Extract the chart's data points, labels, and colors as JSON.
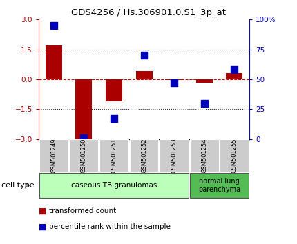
{
  "title": "GDS4256 / Hs.306901.0.S1_3p_at",
  "samples": [
    "GSM501249",
    "GSM501250",
    "GSM501251",
    "GSM501252",
    "GSM501253",
    "GSM501254",
    "GSM501255"
  ],
  "red_values": [
    1.7,
    -3.0,
    -1.1,
    0.4,
    -0.05,
    -0.18,
    0.32
  ],
  "blue_values": [
    95,
    1,
    17,
    70,
    47,
    30,
    58
  ],
  "ylim_left": [
    -3,
    3
  ],
  "ylim_right": [
    0,
    100
  ],
  "yticks_left": [
    -3,
    -1.5,
    0,
    1.5,
    3
  ],
  "yticks_right": [
    0,
    25,
    50,
    75,
    100
  ],
  "ytick_labels_right": [
    "0",
    "25",
    "50",
    "75",
    "100%"
  ],
  "red_color": "#aa0000",
  "blue_color": "#0000bb",
  "bar_width": 0.55,
  "blue_marker_size": 45,
  "hline_zero_color": "#cc0000",
  "hline_dotted_color": "#333333",
  "group1_label": "caseous TB granulomas",
  "group2_label": "normal lung\nparenchyma",
  "cell_type_label": "cell type",
  "legend_red_label": "transformed count",
  "legend_blue_label": "percentile rank within the sample",
  "xticklabel_bg": "#cccccc",
  "group1_bg": "#bbffbb",
  "group2_bg": "#55bb55",
  "n_group1": 5,
  "n_group2": 2
}
